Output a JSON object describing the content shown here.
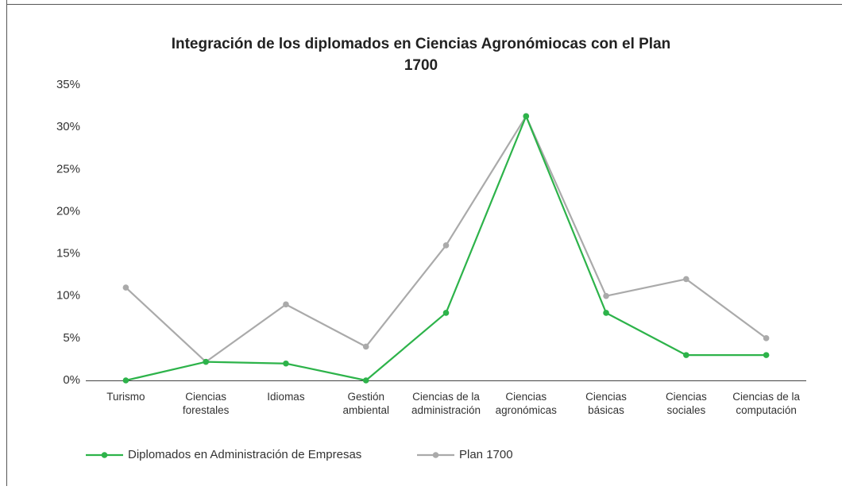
{
  "chart_data": {
    "type": "line",
    "title": "Integración de los diplomados en Ciencias Agronómiocas con el Plan 1700",
    "categories": [
      "Turismo",
      "Ciencias forestales",
      "Idiomas",
      "Gestión ambiental",
      "Ciencias de la administración",
      "Ciencias agronómicas",
      "Ciencias básicas",
      "Ciencias sociales",
      "Ciencias de la computación"
    ],
    "series": [
      {
        "name": "Diplomados en Administración de Empresas",
        "color": "#2db34a",
        "values": [
          0,
          2.2,
          2,
          0,
          8,
          31.3,
          8,
          3,
          3
        ]
      },
      {
        "name": "Plan 1700",
        "color": "#aaaaaa",
        "values": [
          11,
          2.2,
          9,
          4,
          16,
          31.3,
          10,
          12,
          5
        ]
      }
    ],
    "ylim": [
      0,
      35
    ],
    "yticks": [
      {
        "value": 0,
        "label": "0%"
      },
      {
        "value": 5,
        "label": "5%"
      },
      {
        "value": 10,
        "label": "10%"
      },
      {
        "value": 15,
        "label": "15%"
      },
      {
        "value": 20,
        "label": "20%"
      },
      {
        "value": 25,
        "label": "25%"
      },
      {
        "value": 30,
        "label": "30%"
      },
      {
        "value": 35,
        "label": "35%"
      }
    ],
    "grid": false,
    "legend": "bottom"
  }
}
